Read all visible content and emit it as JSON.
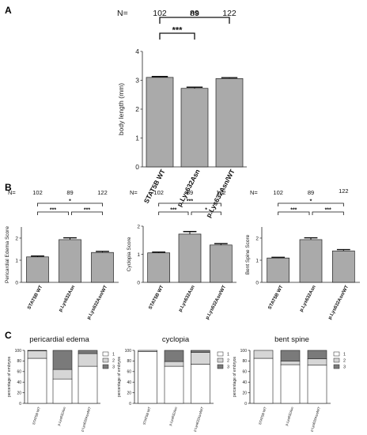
{
  "panels": {
    "A": "A",
    "B": "B",
    "C": "C"
  },
  "colors": {
    "bar": "#aaaaaa",
    "bar_edge": "#222222",
    "stack_1": "#ffffff",
    "stack_2": "#d6d6d6",
    "stack_3": "#7a7a7a"
  },
  "chart_data": [
    {
      "id": "A",
      "type": "bar",
      "categories": [
        "STAT5B WT",
        "p.Lys632Asn",
        "p.Lys632Asn/WT"
      ],
      "values": [
        3.1,
        2.72,
        3.06
      ],
      "errors": [
        0.03,
        0.04,
        0.03
      ],
      "ylabel": "body length (mm)",
      "ylim": [
        0,
        4
      ],
      "yticks": [
        "0",
        "1",
        "2",
        "3",
        "4"
      ],
      "n_label": "N=",
      "n": [
        "102",
        "89",
        "122"
      ],
      "significance": [
        {
          "from": 0,
          "to": 1,
          "label": "***"
        },
        {
          "from": 0,
          "to": 2,
          "label": "ns"
        }
      ]
    },
    {
      "id": "B1",
      "type": "bar",
      "categories": [
        "STAT5B WT",
        "p.Lys632Asn",
        "p.Lys632Asn/WT"
      ],
      "values": [
        1.15,
        1.93,
        1.35
      ],
      "errors": [
        0.04,
        0.08,
        0.05
      ],
      "ylabel": "Pericardial Edema Score",
      "ylim": [
        0,
        2.5
      ],
      "yticks": [
        "0",
        "1",
        "2"
      ],
      "n_label": "N=",
      "n": [
        "102",
        "89",
        "122"
      ],
      "significance": [
        {
          "from": 0,
          "to": 1,
          "label": "***"
        },
        {
          "from": 1,
          "to": 2,
          "label": "***"
        },
        {
          "from": 0,
          "to": 2,
          "label": "*"
        }
      ]
    },
    {
      "id": "B2",
      "type": "bar",
      "categories": [
        "STAT5B WT",
        "p.Lys632Asn",
        "p.Lys632Asn/WT"
      ],
      "values": [
        1.05,
        1.72,
        1.33
      ],
      "errors": [
        0.03,
        0.09,
        0.05
      ],
      "ylabel": "Cyclopia Score",
      "ylim": [
        0,
        2
      ],
      "yticks": [
        "0",
        "1",
        "2"
      ],
      "n_label": "N=",
      "n": [
        "102",
        "89",
        "122"
      ],
      "significance": [
        {
          "from": 0,
          "to": 1,
          "label": "***"
        },
        {
          "from": 1,
          "to": 2,
          "label": "*"
        },
        {
          "from": 0,
          "to": 2,
          "label": "***"
        }
      ]
    },
    {
      "id": "B3",
      "type": "bar",
      "categories": [
        "STAT5B WT",
        "p.Lys632Asn",
        "p.Lys632Asn/WT"
      ],
      "values": [
        1.1,
        1.93,
        1.42
      ],
      "errors": [
        0.03,
        0.08,
        0.06
      ],
      "ylabel": "Bent Spine Score",
      "ylim": [
        0,
        2.5
      ],
      "yticks": [
        "0",
        "1",
        "2"
      ],
      "n_label": "N=",
      "n": [
        "102",
        "89",
        "122"
      ],
      "significance": [
        {
          "from": 0,
          "to": 1,
          "label": "***"
        },
        {
          "from": 1,
          "to": 2,
          "label": "***"
        },
        {
          "from": 0,
          "to": 2,
          "label": "*"
        }
      ]
    },
    {
      "id": "C1",
      "type": "bar",
      "stacked": true,
      "title": "pericardial edema",
      "categories": [
        "STAT5B WT",
        "p.Lys632Asn",
        "p.Lys632Asn/WT"
      ],
      "series": [
        {
          "name": "1",
          "values": [
            85,
            46,
            70
          ]
        },
        {
          "name": "2",
          "values": [
            14,
            18,
            24
          ]
        },
        {
          "name": "3",
          "values": [
            1,
            36,
            6
          ]
        }
      ],
      "ylabel": "percentage of embryos",
      "ylim": [
        0,
        100
      ],
      "yticks": [
        "0",
        "20",
        "40",
        "60",
        "80",
        "100"
      ],
      "legend": "right"
    },
    {
      "id": "C2",
      "type": "bar",
      "stacked": true,
      "title": "cyclopia",
      "categories": [
        "STAT5B WT",
        "p.Lys632Asn",
        "p.Lys632Asn/WT"
      ],
      "series": [
        {
          "name": "1",
          "values": [
            98,
            70,
            74
          ]
        },
        {
          "name": "2",
          "values": [
            2,
            9,
            22
          ]
        },
        {
          "name": "3",
          "values": [
            0,
            21,
            4
          ]
        }
      ],
      "ylabel": "percentage of embryos",
      "ylim": [
        0,
        100
      ],
      "yticks": [
        "0",
        "20",
        "40",
        "60",
        "80",
        "100"
      ],
      "legend": "right"
    },
    {
      "id": "C3",
      "type": "bar",
      "stacked": true,
      "title": "bent spine",
      "categories": [
        "STAT5B WT",
        "p.Lys632Asn",
        "p.Lys632Asn/WT"
      ],
      "series": [
        {
          "name": "1",
          "values": [
            85,
            73,
            72
          ]
        },
        {
          "name": "2",
          "values": [
            15,
            7,
            12
          ]
        },
        {
          "name": "3",
          "values": [
            0,
            20,
            16
          ]
        }
      ],
      "ylabel": "percentage of embryos",
      "ylim": [
        0,
        100
      ],
      "yticks": [
        "0",
        "20",
        "40",
        "60",
        "80",
        "100"
      ],
      "legend": "right"
    }
  ]
}
